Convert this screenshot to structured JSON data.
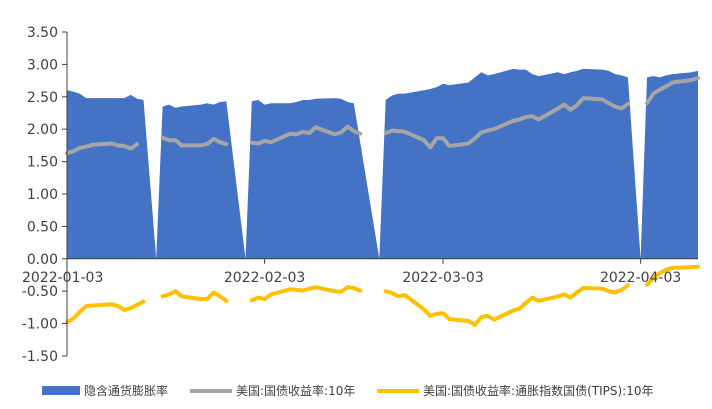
{
  "chart_data": {
    "type": "area",
    "x_ticks": [
      "2022-01-03",
      "2022-02-03",
      "2022-03-03",
      "2022-04-03"
    ],
    "x_range": [
      "2022-01-03",
      "2022-04-12"
    ],
    "ylim": [
      -1.5,
      3.5
    ],
    "y_ticks": [
      "3.50",
      "3.00",
      "2.50",
      "2.00",
      "1.50",
      "1.00",
      "0.50",
      "0.00",
      "-0.50",
      "-1.00",
      "-1.50"
    ],
    "y_tick_values": [
      3.5,
      3.0,
      2.5,
      2.0,
      1.5,
      1.0,
      0.5,
      0.0,
      -0.5,
      -1.0,
      -1.5
    ],
    "grid": false,
    "legend_position": "bottom",
    "series": [
      {
        "name": "隐含通货膨胀率",
        "kind": "area",
        "color": "#4472C4",
        "points": [
          [
            "2022-01-03",
            2.6
          ],
          [
            "2022-01-04",
            2.58
          ],
          [
            "2022-01-05",
            2.55
          ],
          [
            "2022-01-06",
            2.48
          ],
          [
            "2022-01-07",
            2.48
          ],
          [
            "2022-01-10",
            2.48
          ],
          [
            "2022-01-11",
            2.48
          ],
          [
            "2022-01-12",
            2.48
          ],
          [
            "2022-01-13",
            2.53
          ],
          [
            "2022-01-14",
            2.47
          ],
          [
            "2022-01-15",
            2.45
          ],
          [
            "2022-01-17",
            0.0
          ],
          [
            "2022-01-18",
            2.35
          ],
          [
            "2022-01-19",
            2.38
          ],
          [
            "2022-01-20",
            2.33
          ],
          [
            "2022-01-21",
            2.35
          ],
          [
            "2022-01-24",
            2.38
          ],
          [
            "2022-01-25",
            2.4
          ],
          [
            "2022-01-26",
            2.38
          ],
          [
            "2022-01-27",
            2.42
          ],
          [
            "2022-01-28",
            2.43
          ],
          [
            "2022-01-31",
            0.0
          ],
          [
            "2022-02-01",
            2.43
          ],
          [
            "2022-02-02",
            2.45
          ],
          [
            "2022-02-03",
            2.38
          ],
          [
            "2022-02-04",
            2.4
          ],
          [
            "2022-02-07",
            2.4
          ],
          [
            "2022-02-08",
            2.42
          ],
          [
            "2022-02-09",
            2.45
          ],
          [
            "2022-02-10",
            2.45
          ],
          [
            "2022-02-11",
            2.47
          ],
          [
            "2022-02-14",
            2.48
          ],
          [
            "2022-02-15",
            2.47
          ],
          [
            "2022-02-16",
            2.42
          ],
          [
            "2022-02-17",
            2.4
          ],
          [
            "2022-02-21",
            0.0
          ],
          [
            "2022-02-22",
            2.45
          ],
          [
            "2022-02-23",
            2.52
          ],
          [
            "2022-02-24",
            2.55
          ],
          [
            "2022-02-25",
            2.55
          ],
          [
            "2022-02-28",
            2.6
          ],
          [
            "2022-03-01",
            2.62
          ],
          [
            "2022-03-02",
            2.65
          ],
          [
            "2022-03-03",
            2.7
          ],
          [
            "2022-03-04",
            2.68
          ],
          [
            "2022-03-07",
            2.72
          ],
          [
            "2022-03-08",
            2.8
          ],
          [
            "2022-03-09",
            2.88
          ],
          [
            "2022-03-10",
            2.83
          ],
          [
            "2022-03-11",
            2.85
          ],
          [
            "2022-03-14",
            2.93
          ],
          [
            "2022-03-15",
            2.92
          ],
          [
            "2022-03-16",
            2.92
          ],
          [
            "2022-03-17",
            2.85
          ],
          [
            "2022-03-18",
            2.82
          ],
          [
            "2022-03-21",
            2.88
          ],
          [
            "2022-03-22",
            2.85
          ],
          [
            "2022-03-23",
            2.88
          ],
          [
            "2022-03-24",
            2.9
          ],
          [
            "2022-03-25",
            2.93
          ],
          [
            "2022-03-28",
            2.92
          ],
          [
            "2022-03-29",
            2.9
          ],
          [
            "2022-03-30",
            2.85
          ],
          [
            "2022-03-31",
            2.83
          ],
          [
            "2022-04-01",
            2.8
          ],
          [
            "2022-04-03",
            0.0
          ],
          [
            "2022-04-04",
            2.8
          ],
          [
            "2022-04-05",
            2.82
          ],
          [
            "2022-04-06",
            2.8
          ],
          [
            "2022-04-07",
            2.83
          ],
          [
            "2022-04-08",
            2.85
          ],
          [
            "2022-04-11",
            2.88
          ],
          [
            "2022-04-12",
            2.9
          ]
        ]
      },
      {
        "name": "美国:国债收益率:10年",
        "kind": "line",
        "color": "#A5A5A5",
        "points": [
          [
            "2022-01-03",
            1.63
          ],
          [
            "2022-01-04",
            1.66
          ],
          [
            "2022-01-05",
            1.71
          ],
          [
            "2022-01-06",
            1.73
          ],
          [
            "2022-01-07",
            1.76
          ],
          [
            "2022-01-10",
            1.78
          ],
          [
            "2022-01-11",
            1.75
          ],
          [
            "2022-01-12",
            1.74
          ],
          [
            "2022-01-13",
            1.7
          ],
          [
            "2022-01-14",
            1.77
          ],
          null,
          [
            "2022-01-18",
            1.87
          ],
          [
            "2022-01-19",
            1.83
          ],
          [
            "2022-01-20",
            1.83
          ],
          [
            "2022-01-21",
            1.75
          ],
          [
            "2022-01-24",
            1.75
          ],
          [
            "2022-01-25",
            1.77
          ],
          [
            "2022-01-26",
            1.85
          ],
          [
            "2022-01-27",
            1.8
          ],
          [
            "2022-01-28",
            1.77
          ],
          null,
          [
            "2022-02-01",
            1.79
          ],
          [
            "2022-02-02",
            1.78
          ],
          [
            "2022-02-03",
            1.82
          ],
          [
            "2022-02-04",
            1.8
          ],
          [
            "2022-02-07",
            1.93
          ],
          [
            "2022-02-08",
            1.92
          ],
          [
            "2022-02-09",
            1.96
          ],
          [
            "2022-02-10",
            1.94
          ],
          [
            "2022-02-11",
            2.03
          ],
          [
            "2022-02-14",
            1.92
          ],
          [
            "2022-02-15",
            1.95
          ],
          [
            "2022-02-16",
            2.04
          ],
          [
            "2022-02-17",
            1.97
          ],
          [
            "2022-02-18",
            1.93
          ],
          null,
          [
            "2022-02-22",
            1.94
          ],
          [
            "2022-02-23",
            1.98
          ],
          [
            "2022-02-24",
            1.97
          ],
          [
            "2022-02-25",
            1.96
          ],
          [
            "2022-02-28",
            1.83
          ],
          [
            "2022-03-01",
            1.72
          ],
          [
            "2022-03-02",
            1.86
          ],
          [
            "2022-03-03",
            1.86
          ],
          [
            "2022-03-04",
            1.74
          ],
          [
            "2022-03-07",
            1.78
          ],
          [
            "2022-03-08",
            1.86
          ],
          [
            "2022-03-09",
            1.95
          ],
          [
            "2022-03-10",
            1.98
          ],
          [
            "2022-03-11",
            2.0
          ],
          [
            "2022-03-14",
            2.13
          ],
          [
            "2022-03-15",
            2.15
          ],
          [
            "2022-03-16",
            2.19
          ],
          [
            "2022-03-17",
            2.2
          ],
          [
            "2022-03-18",
            2.15
          ],
          [
            "2022-03-21",
            2.32
          ],
          [
            "2022-03-22",
            2.38
          ],
          [
            "2022-03-23",
            2.3
          ],
          [
            "2022-03-24",
            2.37
          ],
          [
            "2022-03-25",
            2.48
          ],
          [
            "2022-03-28",
            2.46
          ],
          [
            "2022-03-29",
            2.4
          ],
          [
            "2022-03-30",
            2.35
          ],
          [
            "2022-03-31",
            2.32
          ],
          [
            "2022-04-01",
            2.39
          ],
          null,
          [
            "2022-04-04",
            2.4
          ],
          [
            "2022-04-05",
            2.55
          ],
          [
            "2022-04-06",
            2.61
          ],
          [
            "2022-04-07",
            2.66
          ],
          [
            "2022-04-08",
            2.72
          ],
          [
            "2022-04-11",
            2.76
          ],
          [
            "2022-04-12",
            2.79
          ]
        ]
      },
      {
        "name": "美国:国债收益率:通胀指数国债(TIPS):10年",
        "kind": "line",
        "color": "#FFC000",
        "points": [
          [
            "2022-01-03",
            -0.98
          ],
          [
            "2022-01-04",
            -0.92
          ],
          [
            "2022-01-05",
            -0.82
          ],
          [
            "2022-01-06",
            -0.73
          ],
          [
            "2022-01-07",
            -0.72
          ],
          [
            "2022-01-10",
            -0.7
          ],
          [
            "2022-01-11",
            -0.73
          ],
          [
            "2022-01-12",
            -0.79
          ],
          [
            "2022-01-13",
            -0.76
          ],
          [
            "2022-01-14",
            -0.71
          ],
          [
            "2022-01-15",
            -0.66
          ],
          null,
          [
            "2022-01-18",
            -0.58
          ],
          [
            "2022-01-19",
            -0.55
          ],
          [
            "2022-01-20",
            -0.5
          ],
          [
            "2022-01-21",
            -0.58
          ],
          [
            "2022-01-24",
            -0.62
          ],
          [
            "2022-01-25",
            -0.62
          ],
          [
            "2022-01-26",
            -0.52
          ],
          [
            "2022-01-27",
            -0.58
          ],
          [
            "2022-01-28",
            -0.65
          ],
          null,
          [
            "2022-02-01",
            -0.64
          ],
          [
            "2022-02-02",
            -0.6
          ],
          [
            "2022-02-03",
            -0.62
          ],
          [
            "2022-02-04",
            -0.55
          ],
          [
            "2022-02-07",
            -0.47
          ],
          [
            "2022-02-08",
            -0.48
          ],
          [
            "2022-02-09",
            -0.49
          ],
          [
            "2022-02-10",
            -0.46
          ],
          [
            "2022-02-11",
            -0.44
          ],
          [
            "2022-02-14",
            -0.5
          ],
          [
            "2022-02-15",
            -0.51
          ],
          [
            "2022-02-16",
            -0.44
          ],
          [
            "2022-02-17",
            -0.45
          ],
          [
            "2022-02-18",
            -0.49
          ],
          null,
          [
            "2022-02-22",
            -0.5
          ],
          [
            "2022-02-23",
            -0.53
          ],
          [
            "2022-02-24",
            -0.58
          ],
          [
            "2022-02-25",
            -0.56
          ],
          [
            "2022-02-28",
            -0.78
          ],
          [
            "2022-03-01",
            -0.88
          ],
          [
            "2022-03-02",
            -0.85
          ],
          [
            "2022-03-03",
            -0.84
          ],
          [
            "2022-03-04",
            -0.93
          ],
          [
            "2022-03-07",
            -0.96
          ],
          [
            "2022-03-08",
            -1.02
          ],
          [
            "2022-03-09",
            -0.9
          ],
          [
            "2022-03-10",
            -0.88
          ],
          [
            "2022-03-11",
            -0.94
          ],
          [
            "2022-03-14",
            -0.8
          ],
          [
            "2022-03-15",
            -0.77
          ],
          [
            "2022-03-16",
            -0.68
          ],
          [
            "2022-03-17",
            -0.6
          ],
          [
            "2022-03-18",
            -0.65
          ],
          [
            "2022-03-21",
            -0.58
          ],
          [
            "2022-03-22",
            -0.55
          ],
          [
            "2022-03-23",
            -0.6
          ],
          [
            "2022-03-24",
            -0.52
          ],
          [
            "2022-03-25",
            -0.45
          ],
          [
            "2022-03-28",
            -0.46
          ],
          [
            "2022-03-29",
            -0.5
          ],
          [
            "2022-03-30",
            -0.52
          ],
          [
            "2022-03-31",
            -0.48
          ],
          [
            "2022-04-01",
            -0.41
          ],
          null,
          [
            "2022-04-04",
            -0.4
          ],
          [
            "2022-04-05",
            -0.3
          ],
          [
            "2022-04-06",
            -0.22
          ],
          [
            "2022-04-07",
            -0.17
          ],
          [
            "2022-04-08",
            -0.14
          ],
          [
            "2022-04-11",
            -0.13
          ],
          [
            "2022-04-12",
            -0.12
          ]
        ]
      }
    ]
  }
}
